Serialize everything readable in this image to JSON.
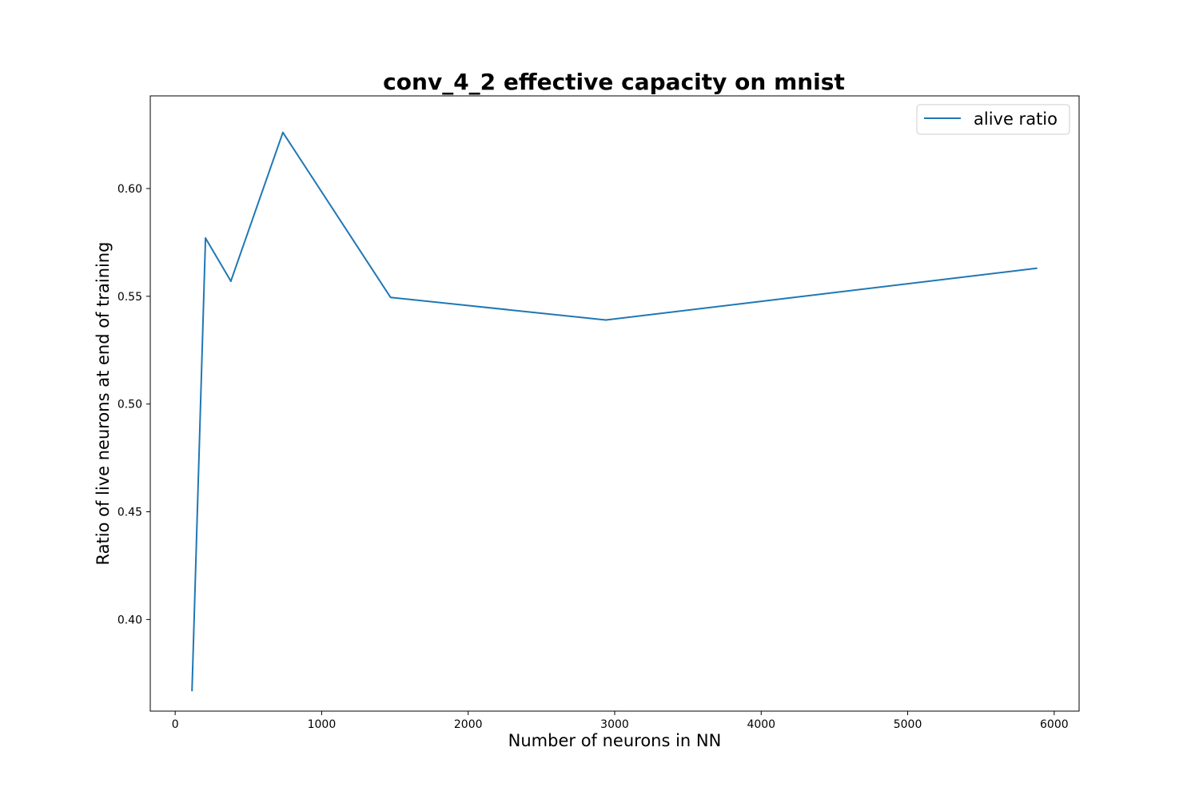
{
  "chart_data": {
    "type": "line",
    "title": "conv_4_2 effective capacity on mnist",
    "xlabel": "Number of neurons in NN",
    "ylabel": "Ratio of live neurons at end of training",
    "xlim": [
      -170,
      6170
    ],
    "ylim": [
      0.3575,
      0.643
    ],
    "xticks": [
      0,
      1000,
      2000,
      3000,
      4000,
      5000,
      6000
    ],
    "xtick_labels": [
      "0",
      "1000",
      "2000",
      "3000",
      "4000",
      "5000",
      "6000"
    ],
    "yticks": [
      0.4,
      0.45,
      0.5,
      0.55,
      0.6
    ],
    "ytick_labels": [
      "0.40",
      "0.45",
      "0.50",
      "0.55",
      "0.60"
    ],
    "grid": false,
    "legend_position": "top-right",
    "series": [
      {
        "name": "alive ratio",
        "color": "#1f77b4",
        "x": [
          115,
          207,
          380,
          735,
          1470,
          2940,
          5880
        ],
        "y": [
          0.367,
          0.577,
          0.557,
          0.626,
          0.5495,
          0.539,
          0.563
        ]
      }
    ]
  }
}
